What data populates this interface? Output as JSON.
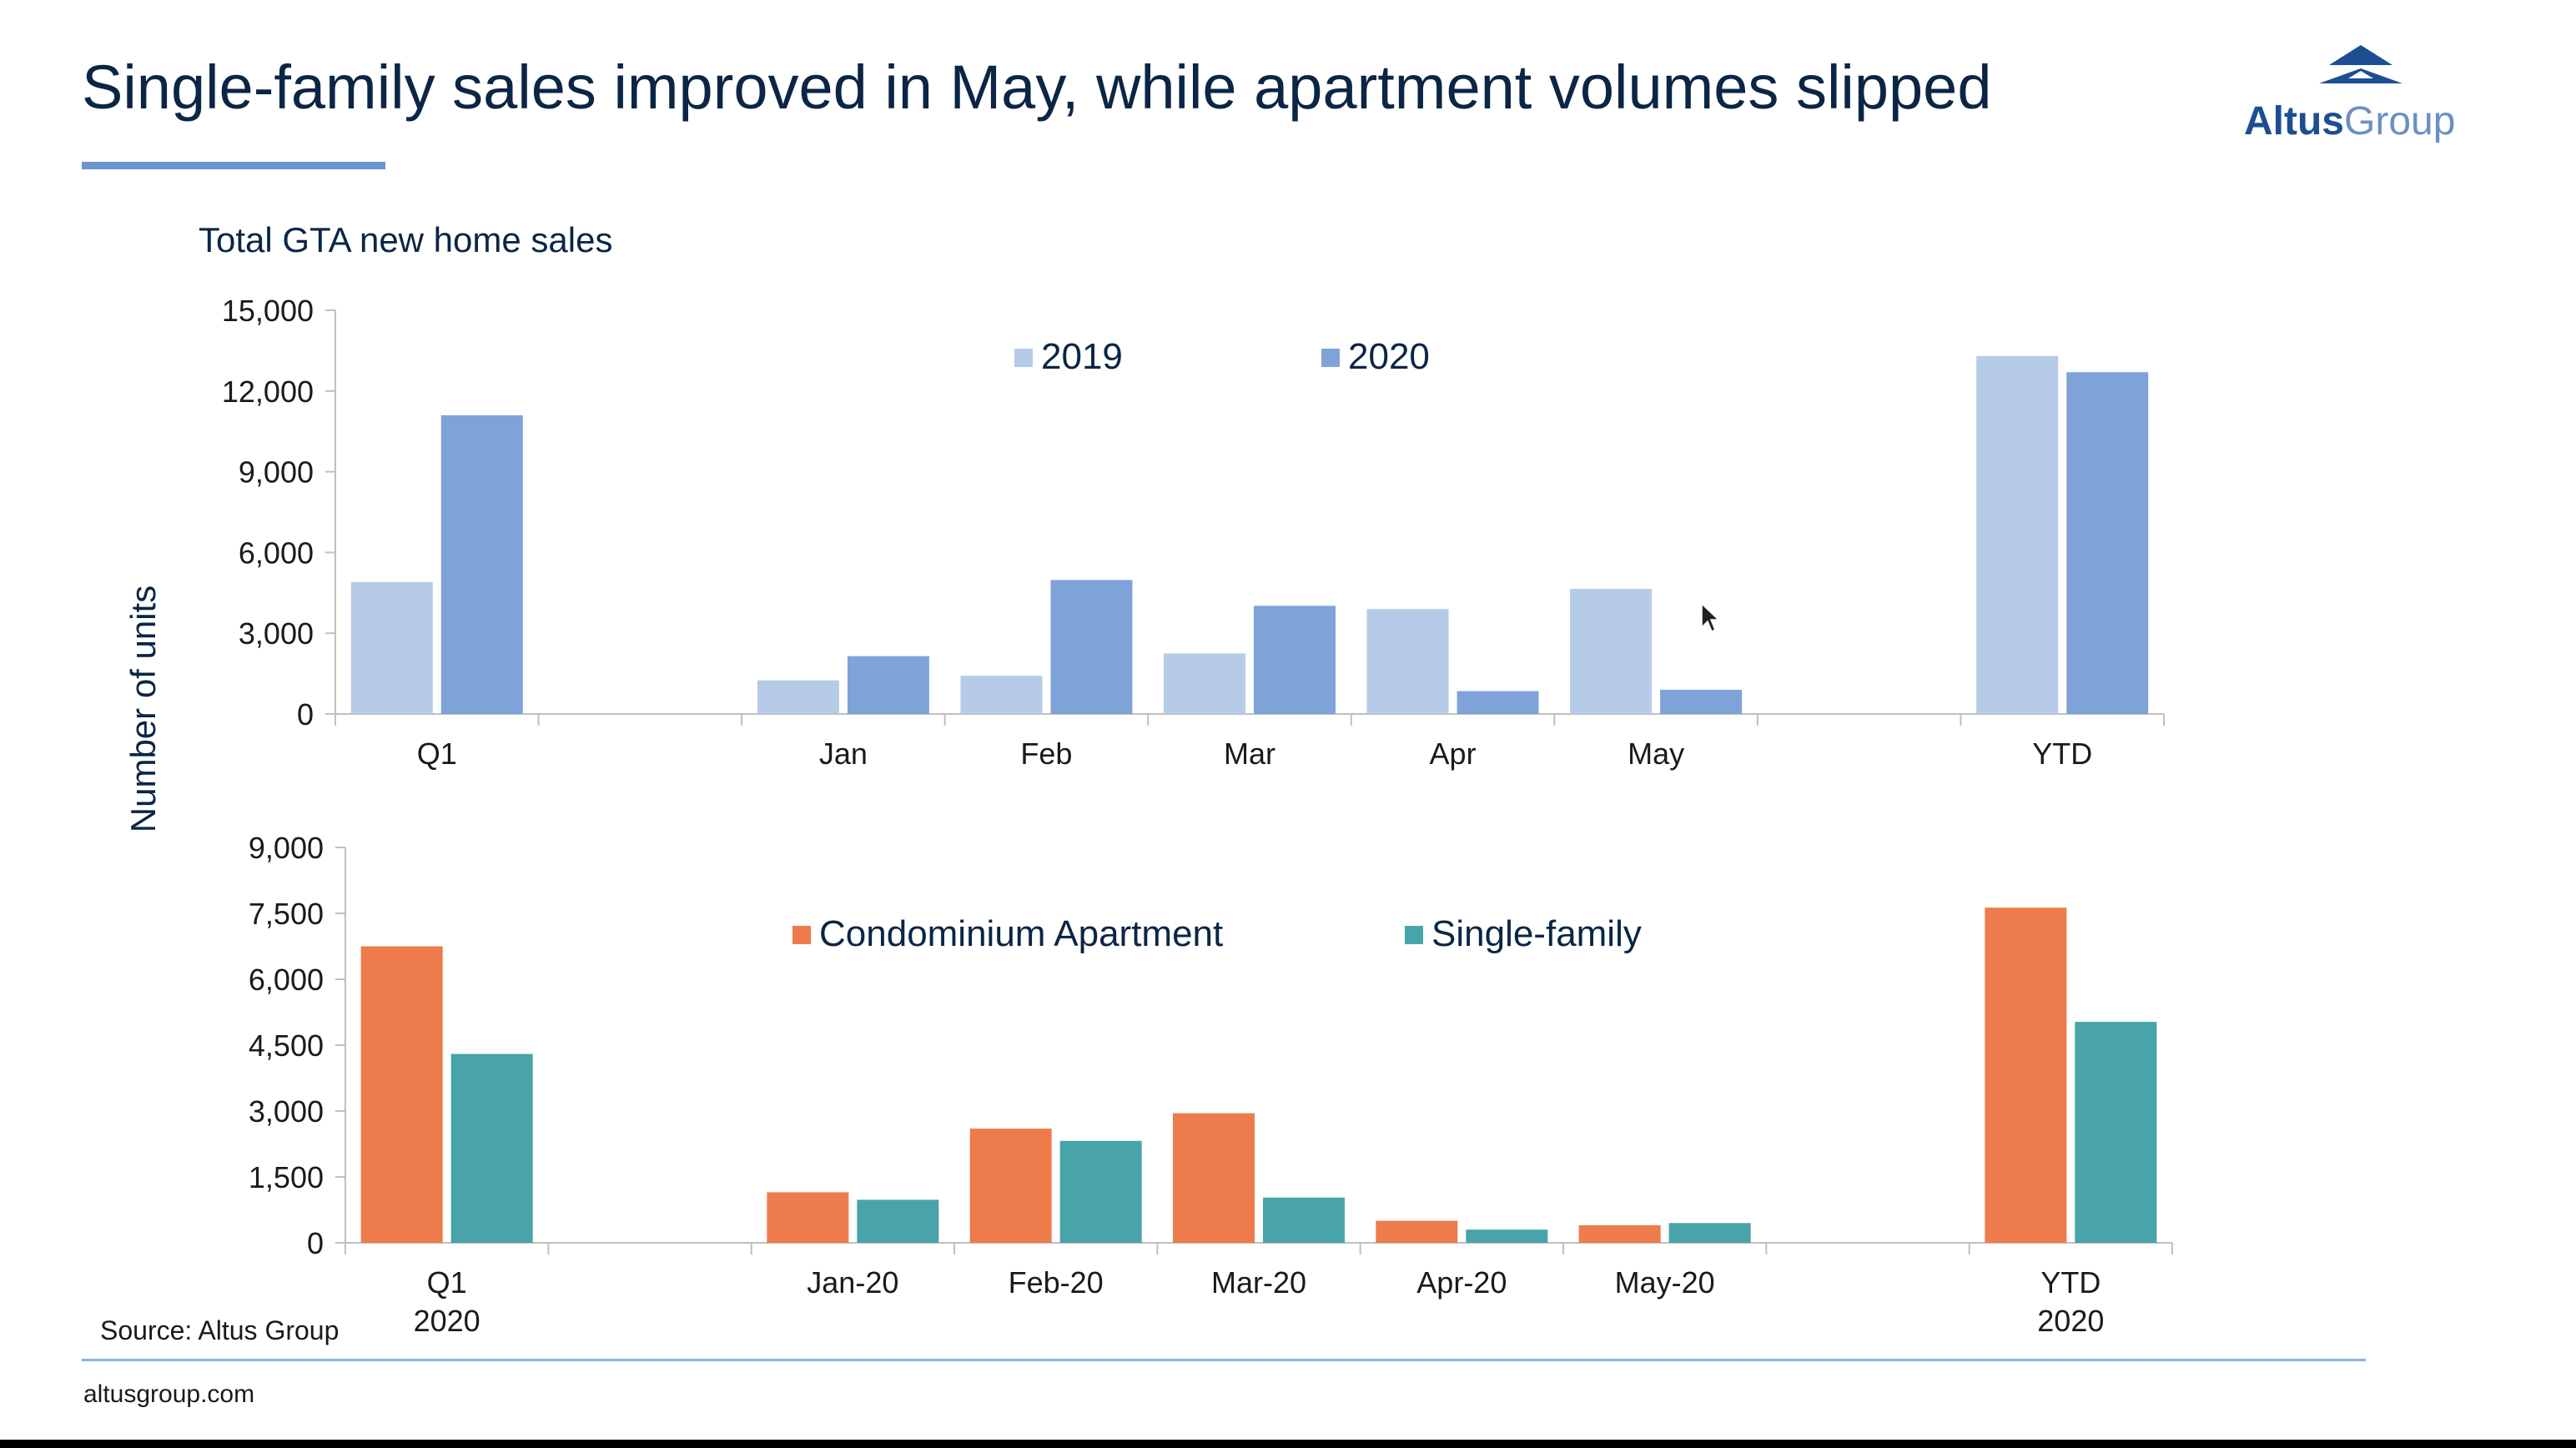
{
  "title": "Single-family sales improved in May, while apartment volumes slipped",
  "logo": {
    "word1": "Altus",
    "word2": "Group"
  },
  "source": "Source: Altus Group",
  "footer_url": "altusgroup.com",
  "colors": {
    "s2019": "#b6cbe8",
    "s2020": "#7fa3d9",
    "condo": "#ee7b4c",
    "single": "#48a4a8",
    "title_rule": "#6b94d1",
    "logo_dark": "#1d4e92"
  },
  "chart_data": [
    {
      "type": "bar",
      "title": "Total GTA new home sales",
      "ylabel": "Number of units",
      "ylim": [
        0,
        15000
      ],
      "yticks": [
        "0",
        "3,000",
        "6,000",
        "9,000",
        "12,000",
        "15,000"
      ],
      "categories": [
        "Q1",
        "",
        "Jan",
        "Feb",
        "Mar",
        "Apr",
        "May",
        "",
        "YTD"
      ],
      "legend_position": "top-center",
      "series": [
        {
          "name": "2019",
          "values": [
            4900,
            null,
            1250,
            1420,
            2250,
            3900,
            4650,
            null,
            13300
          ]
        },
        {
          "name": "2020",
          "values": [
            11100,
            null,
            2150,
            4980,
            4020,
            850,
            900,
            null,
            12700
          ]
        }
      ]
    },
    {
      "type": "bar",
      "ylim": [
        0,
        9000
      ],
      "yticks": [
        "0",
        "1,500",
        "3,000",
        "4,500",
        "6,000",
        "7,500",
        "9,000"
      ],
      "categories": [
        "Q1\n2020",
        "",
        "Jan-20",
        "Feb-20",
        "Mar-20",
        "Apr-20",
        "May-20",
        "",
        "YTD\n2020"
      ],
      "legend_position": "top-center",
      "series": [
        {
          "name": "Condominium Apartment",
          "values": [
            6750,
            null,
            1150,
            2600,
            2950,
            500,
            400,
            null,
            7630
          ]
        },
        {
          "name": "Single-family",
          "values": [
            4300,
            null,
            980,
            2320,
            1030,
            300,
            450,
            null,
            5030
          ]
        }
      ]
    }
  ]
}
